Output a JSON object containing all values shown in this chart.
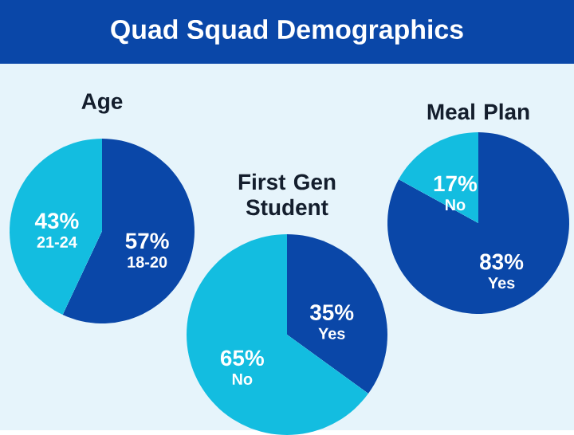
{
  "chart_data": [
    {
      "type": "other",
      "title": "Quad Squad Demographics"
    },
    {
      "type": "pie",
      "title": "Age",
      "categories": [
        "18-20",
        "21-24"
      ],
      "values": [
        57,
        43
      ],
      "value_labels": [
        "57%",
        "43%"
      ],
      "colors": [
        "#0a47a8",
        "#13bde0"
      ]
    },
    {
      "type": "pie",
      "title": "First Gen Student",
      "categories": [
        "Yes",
        "No"
      ],
      "values": [
        35,
        65
      ],
      "value_labels": [
        "35%",
        "65%"
      ],
      "colors": [
        "#0a47a8",
        "#13bde0"
      ]
    },
    {
      "type": "pie",
      "title": "Meal Plan",
      "categories": [
        "Yes",
        "No"
      ],
      "values": [
        83,
        17
      ],
      "value_labels": [
        "83%",
        "17%"
      ],
      "colors": [
        "#0a47a8",
        "#13bde0"
      ]
    }
  ]
}
